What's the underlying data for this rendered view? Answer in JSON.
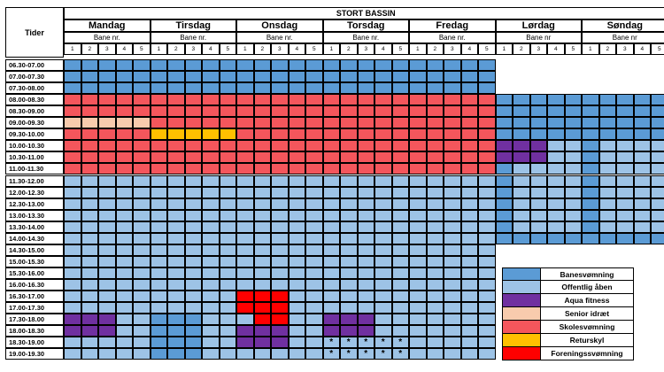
{
  "header": {
    "corner_label": "Tider",
    "pool_title": "STORT BASSIN",
    "days": [
      {
        "name": "Mandag",
        "lane_label": "Bane nr.",
        "lanes": [
          "1",
          "2",
          "3",
          "4",
          "5"
        ]
      },
      {
        "name": "Tirsdag",
        "lane_label": "Bane nr.",
        "lanes": [
          "1",
          "2",
          "3",
          "4",
          "5"
        ]
      },
      {
        "name": "Onsdag",
        "lane_label": "Bane nr.",
        "lanes": [
          "1",
          "2",
          "3",
          "4",
          "5"
        ]
      },
      {
        "name": "Torsdag",
        "lane_label": "Bane nr.",
        "lanes": [
          "1",
          "2",
          "3",
          "4",
          "5"
        ]
      },
      {
        "name": "Fredag",
        "lane_label": "Bane nr.",
        "lanes": [
          "1",
          "2",
          "3",
          "4",
          "5"
        ]
      },
      {
        "name": "Lørdag",
        "lane_label": "Bane nr",
        "lanes": [
          "1",
          "2",
          "3",
          "4",
          "5"
        ]
      },
      {
        "name": "Søndag",
        "lane_label": "Bane nr",
        "lanes": [
          "1",
          "2",
          "3",
          "4",
          "5"
        ]
      }
    ]
  },
  "times": [
    "06.30-07.00",
    "07.00-07.30",
    "07.30-08.00",
    "08.00-08.30",
    "08.30-09.00",
    "09.00-09.30",
    "09.30-10.00",
    "10.00-10.30",
    "10.30-11.00",
    "11.00-11.30",
    "11.30-12.00",
    "12.00-12.30",
    "12.30-13.00",
    "13.00-13.30",
    "13.30-14.00",
    "14.00-14.30",
    "14.30-15.00",
    "15.00-15.30",
    "15.30-16.00",
    "16.00-16.30",
    "16.30-17.00",
    "17.00-17.30",
    "17.30-18.00",
    "18.00-18.30",
    "18.30-19.00",
    "19.00-19.30"
  ],
  "categories": {
    "D": {
      "label": "Banesvømning",
      "color": "#5b9bd5"
    },
    "L": {
      "label": "Offentlig åben",
      "color": "#9dc3e6"
    },
    "P": {
      "label": "Aqua fitness",
      "color": "#7030a0"
    },
    "S": {
      "label": "Senior idræt",
      "color": "#f8cbad"
    },
    "K": {
      "label": "Skolesvømning",
      "color": "#f4565c"
    },
    "Y": {
      "label": "Returskyl",
      "color": "#ffc000"
    },
    "F": {
      "label": "Foreningssvømning",
      "color": "#ff0000"
    },
    "W": {
      "label": "",
      "color": "#ffffff"
    }
  },
  "legend_order": [
    "D",
    "L",
    "P",
    "S",
    "K",
    "Y",
    "F"
  ],
  "schedule": [
    "DDDDDDDDDDDDDDDDDDDDDDDDDWWWWWWWWWW",
    "DDDDDDDDDDDDDDDDDDDDDDDDDWWWWWWWWWW",
    "DDDDDDDDDDDDDDDDDDDDDDDDDWWWWWWWWWW",
    "KKKKKKKKKKKKKKKKKKKKKKKKKDDDDDDDDDD",
    "KKKKKKKKKKKKKKKKKKKKKKKKKDDDDDDDDDD",
    "SSSSSKKKKKKKKKKKKKKKKKKKKDDDDDDDDDD",
    "KKKKKYYYYYKKKKKKKKKKKKKKKDDDDDDDDDD",
    "KKKKKKKKKKKKKKKKKKKKKKKKKPPPLLDLLLL",
    "KKKKKKKKKKKKKKKKKKKKKKKKKPPPLLDLLLL",
    "KKKKKKKKKKKKKKKKKKKKKKKKKDLLLLDLLLL",
    "LLLLLLLLLLLLLLLLLLLLLLLLLDLLLLDLLLL",
    "LLLLLLLLLLLLLLLLLLLLLLLLLDLLLLDLLLL",
    "LLLLLLLLLLLLLLLLLLLLLLLLLDLLLLDLLLL",
    "LLLLLLLLLLLLLLLLLLLLLLLLLDLLLLDLLLL",
    "LLLLLLLLLLLLLLLLLLLLLLLLLDLLLLDLLLL",
    "LLLLLLLLLLLLLLLLLLLLLLLLLDDDDDDDDDD",
    "LLLLLLLLLLLLLLLLLLLLLLLLLWWWWWWWWWW",
    "LLLLLLLLLLLLLLLLLLLLLLLLLWWWWWWWWWW",
    "LLLLLLLLLLLLLLLLLLLLLLLLLWWWWWWWWWW",
    "LLLLLLLLLLLLLLLLLLLLLLLLLWWWWWWWWWW",
    "LLLLLLLLLLFFFLLLLLLLLLLLLWWWWWWWWWW",
    "LLLLLLLLLLFFFLLLLLLLLLLLLWWWWWWWWWW",
    "PPPLLDDDLLLFFLLPPPLLLLLLLWWWWWWWWWW",
    "PPPLLDDDLLPPPLLPPPLLLLLLLWWWWWWWWWW",
    "LLLLLDDDLLPPPLLLLLLLLLLLLWWWWWWWWWW",
    "LLLLLDDDLLLLLLLLLLLLLLLLLWWWWWWWWWW"
  ],
  "stars": {
    "symbol": "*",
    "rows": [
      24,
      25
    ],
    "columns": [
      15,
      16,
      17,
      18,
      19
    ]
  }
}
